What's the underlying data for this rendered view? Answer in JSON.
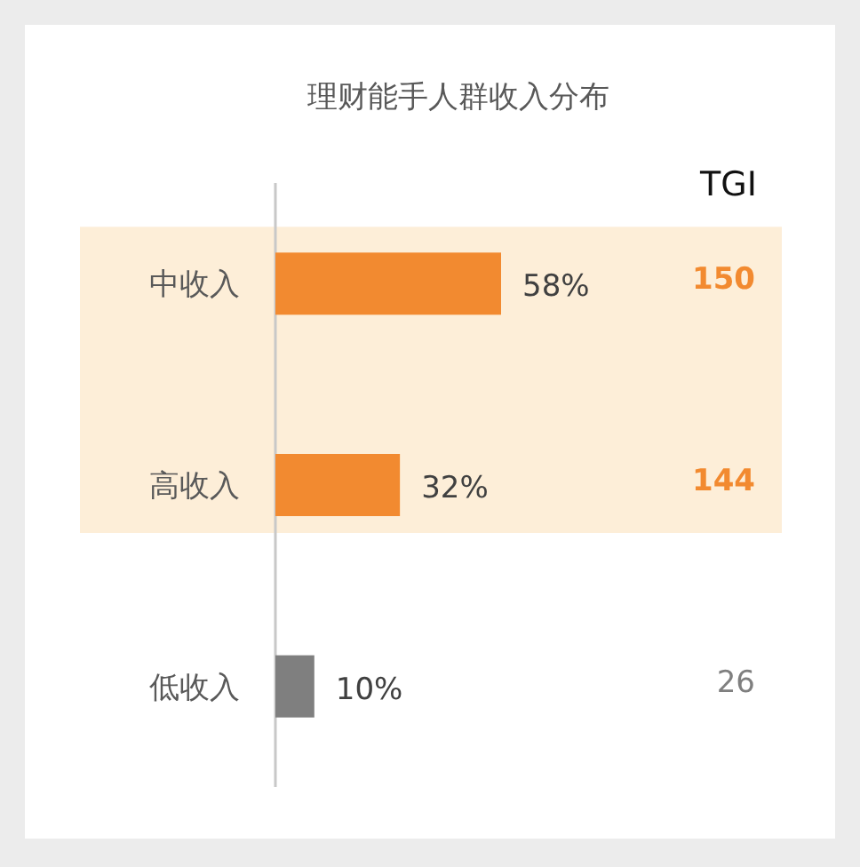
{
  "chart_data": {
    "type": "bar",
    "orientation": "horizontal",
    "title": "理财能手人群收入分布",
    "categories": [
      "中收入",
      "高收入",
      "低收入"
    ],
    "values": [
      58,
      32,
      10
    ],
    "colors": [
      "#f28a30",
      "#f28a30",
      "#7f7f7f"
    ],
    "value_labels": [
      "58%",
      "32%",
      "10%"
    ],
    "bands": [
      {
        "axis": "y",
        "from": "中收入",
        "to": "高收入",
        "color": "#fdeed8"
      }
    ],
    "annotations": [
      "TGI",
      "150",
      "144",
      "26"
    ]
  }
}
